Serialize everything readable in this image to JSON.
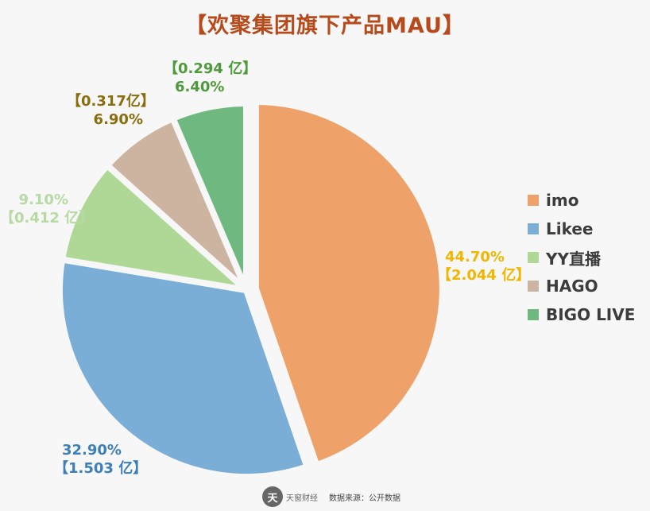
{
  "title": "【欢聚集团旗下产品MAU】",
  "footer": {
    "logo_text": "天窗财经",
    "source": "数据来源：公开数据"
  },
  "colors": {
    "imo": "#eea26a",
    "Likee": "#7aaed6",
    "YY": "#afd897",
    "HAGO": "#cdb4a1",
    "BIGO": "#6fb880",
    "title": "#b64a1a"
  },
  "chart_data": {
    "type": "pie",
    "title": "【欢聚集团旗下产品MAU】",
    "legend_position": "right",
    "series": [
      {
        "name": "imo",
        "value": 2.044,
        "percent": 44.7,
        "pct_label": "44.70%",
        "value_label": "【2.044 亿】",
        "color": "#eea26a",
        "text_color": "#f2b600",
        "exploded": true
      },
      {
        "name": "Likee",
        "value": 1.503,
        "percent": 32.9,
        "pct_label": "32.90%",
        "value_label": "【1.503 亿】",
        "color": "#7aaed6",
        "text_color": "#3d7fb6",
        "exploded": false
      },
      {
        "name": "YY直播",
        "value": 0.412,
        "percent": 9.1,
        "pct_label": "9.10%",
        "value_label": "【0.412 亿】",
        "color": "#afd897",
        "text_color": "#b7d9a3",
        "exploded": false
      },
      {
        "name": "HAGO",
        "value": 0.317,
        "percent": 6.9,
        "pct_label": "6.90%",
        "value_label": "【0.317亿】",
        "color": "#cdb4a1",
        "text_color": "#8a6d0c",
        "exploded": false
      },
      {
        "name": "BIGO LIVE",
        "value": 0.294,
        "percent": 6.4,
        "pct_label": "6.40%",
        "value_label": "【0.294 亿】",
        "color": "#6fb880",
        "text_color": "#4f9a3b",
        "exploded": false
      }
    ]
  }
}
